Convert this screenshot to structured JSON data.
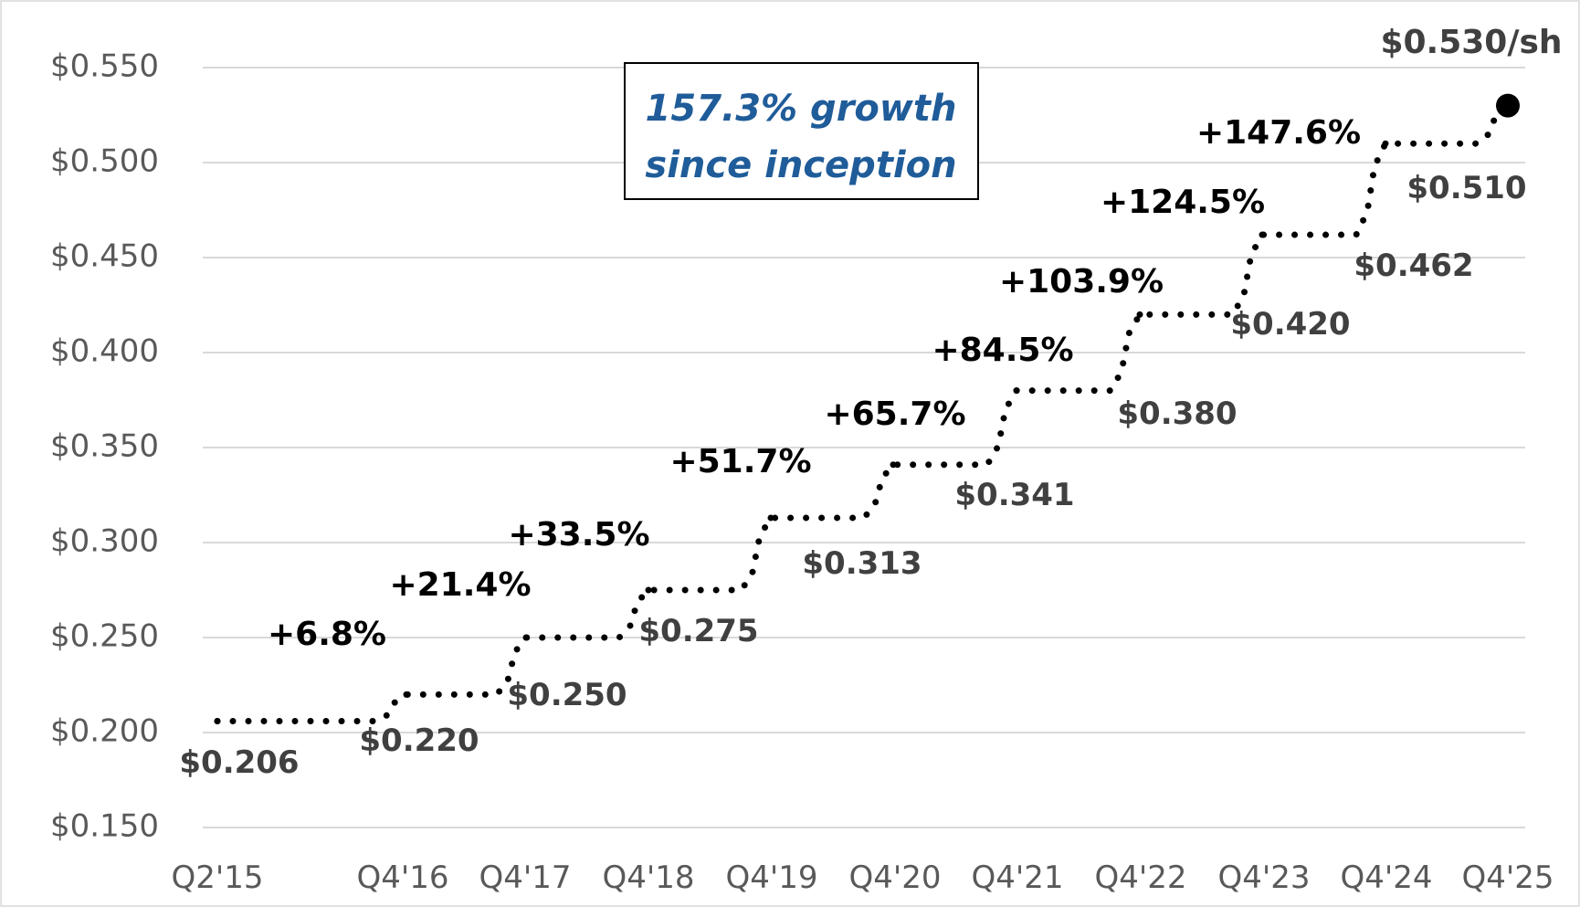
{
  "chart_data": {
    "type": "line",
    "style": "dotted-step",
    "title": "",
    "xlabel": "",
    "ylabel": "",
    "ylim": [
      0.15,
      0.55
    ],
    "y_ticks": [
      "$0.150",
      "$0.200",
      "$0.250",
      "$0.300",
      "$0.350",
      "$0.400",
      "$0.450",
      "$0.500",
      "$0.550"
    ],
    "y_tick_values": [
      0.15,
      0.2,
      0.25,
      0.3,
      0.35,
      0.4,
      0.45,
      0.5,
      0.55
    ],
    "x_ticks": [
      "Q2'15",
      "Q4'16",
      "Q4'17",
      "Q4'18",
      "Q4'19",
      "Q4'20",
      "Q4'21",
      "Q4'22",
      "Q4'23",
      "Q4'24",
      "Q4'25"
    ],
    "grid": true,
    "steps": [
      {
        "period": "Q2'15",
        "value": 0.206,
        "label": "$0.206",
        "growth": ""
      },
      {
        "period": "Q4'16",
        "value": 0.22,
        "label": "$0.220",
        "growth": "+6.8%"
      },
      {
        "period": "Q4'17",
        "value": 0.25,
        "label": "$0.250",
        "growth": "+21.4%"
      },
      {
        "period": "Q4'18",
        "value": 0.275,
        "label": "$0.275",
        "growth": "+33.5%"
      },
      {
        "period": "Q4'19",
        "value": 0.313,
        "label": "$0.313",
        "growth": "+51.7%"
      },
      {
        "period": "Q4'20",
        "value": 0.341,
        "label": "$0.341",
        "growth": "+65.7%"
      },
      {
        "period": "Q4'21",
        "value": 0.38,
        "label": "$0.380",
        "growth": "+84.5%"
      },
      {
        "period": "Q4'22",
        "value": 0.42,
        "label": "$0.420",
        "growth": "+103.9%"
      },
      {
        "period": "Q4'23",
        "value": 0.462,
        "label": "$0.462",
        "growth": "+124.5%"
      },
      {
        "period": "Q4'24",
        "value": 0.51,
        "label": "$0.510",
        "growth": "+147.6%"
      },
      {
        "period": "Q4'25",
        "value": 0.53,
        "label": "$0.530/sh",
        "growth": ""
      }
    ],
    "annotation": {
      "line1": "157.3% growth",
      "line2": "since inception"
    }
  }
}
